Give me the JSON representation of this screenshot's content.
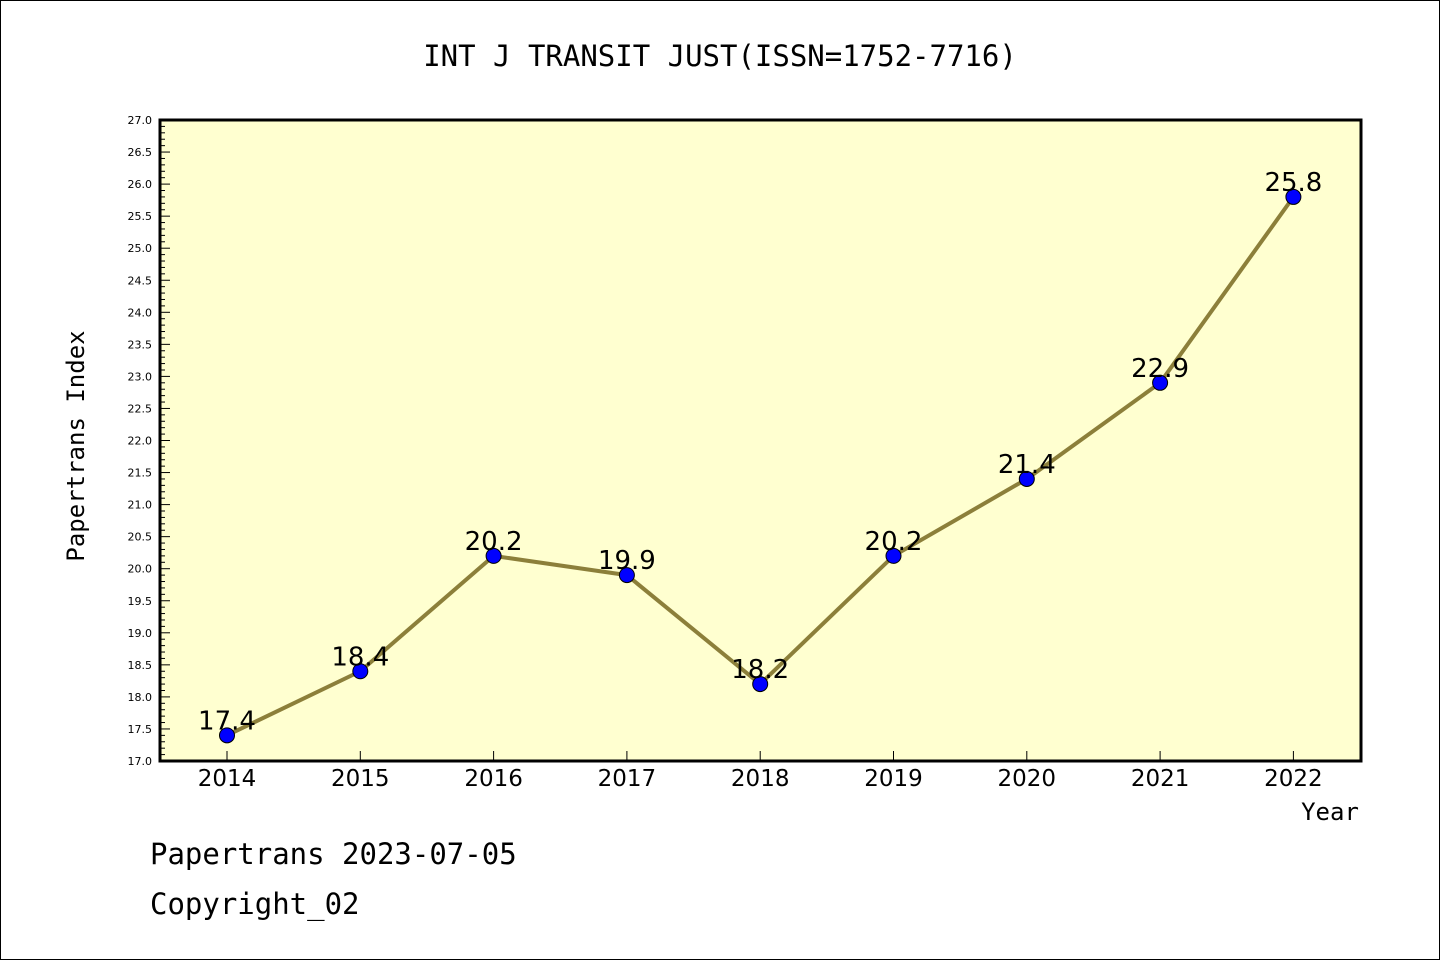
{
  "chart_data": {
    "type": "line",
    "title": "INT J TRANSIT JUST(ISSN=1752-7716)",
    "xlabel": "Year",
    "ylabel": "Papertrans Index",
    "categories": [
      "2014",
      "2015",
      "2016",
      "2017",
      "2018",
      "2019",
      "2020",
      "2021",
      "2022"
    ],
    "series": [
      {
        "values": [
          17.4,
          18.4,
          20.2,
          19.9,
          18.2,
          20.2,
          21.4,
          22.9,
          25.8
        ],
        "labels": [
          "17.4",
          "18.4",
          "20.2",
          "19.9",
          "18.2",
          "20.2",
          "21.4",
          "22.9",
          "25.8"
        ]
      }
    ],
    "ylim": [
      17.0,
      27.0
    ],
    "yticks": [
      "17.0",
      "17.5",
      "18.0",
      "18.5",
      "19.0",
      "19.5",
      "20.0",
      "20.5",
      "21.0",
      "21.5",
      "22.0",
      "22.5",
      "23.0",
      "23.5",
      "24.0",
      "24.5",
      "25.0",
      "25.5",
      "26.0",
      "26.5",
      "27.0"
    ],
    "grid": false,
    "colors": {
      "plot_background": "#ffffd0",
      "line": "#8c7f3a",
      "marker": "#0000ff"
    }
  },
  "footer": {
    "line1": "Papertrans 2023-07-05",
    "line2": "Copyright_02"
  }
}
